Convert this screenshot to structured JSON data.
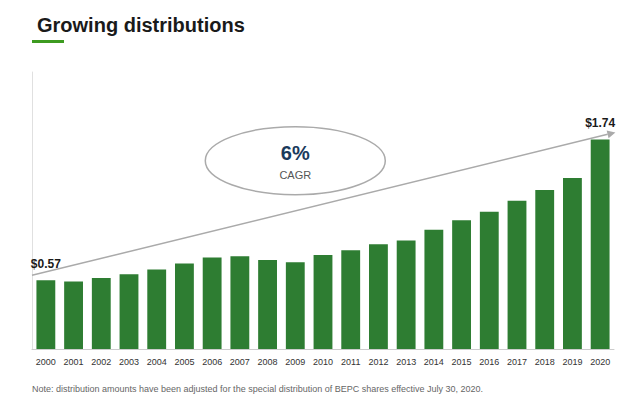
{
  "chart_data": {
    "type": "bar",
    "title": "Growing distributions",
    "categories": [
      "2000",
      "2001",
      "2002",
      "2003",
      "2004",
      "2005",
      "2006",
      "2007",
      "2008",
      "2009",
      "2010",
      "2011",
      "2012",
      "2013",
      "2014",
      "2015",
      "2016",
      "2017",
      "2018",
      "2019",
      "2020"
    ],
    "values": [
      0.57,
      0.56,
      0.59,
      0.62,
      0.66,
      0.71,
      0.76,
      0.77,
      0.74,
      0.72,
      0.78,
      0.82,
      0.87,
      0.9,
      0.99,
      1.07,
      1.14,
      1.23,
      1.32,
      1.42,
      1.74
    ],
    "value_labels": [
      "$0.57",
      null,
      null,
      null,
      null,
      null,
      null,
      null,
      null,
      null,
      null,
      null,
      null,
      null,
      null,
      null,
      null,
      null,
      null,
      null,
      "$1.74"
    ],
    "color": "#2e7d32",
    "ylim": [
      0,
      2.3
    ],
    "tick_labels": "x",
    "grid": false,
    "annotations": [
      "6%",
      "CAGR"
    ],
    "note": "Note: distribution amounts have been adjusted for the special distribution of BEPC shares effective July 30, 2020."
  }
}
